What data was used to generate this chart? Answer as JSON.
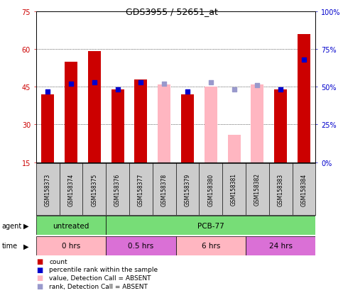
{
  "title": "GDS3955 / 52651_at",
  "samples": [
    "GSM158373",
    "GSM158374",
    "GSM158375",
    "GSM158376",
    "GSM158377",
    "GSM158378",
    "GSM158379",
    "GSM158380",
    "GSM158381",
    "GSM158382",
    "GSM158383",
    "GSM158384"
  ],
  "count_present": [
    42,
    55,
    59,
    44,
    48,
    null,
    42,
    null,
    null,
    null,
    44,
    66
  ],
  "count_absent": [
    null,
    null,
    null,
    null,
    null,
    46,
    null,
    45,
    26,
    46,
    null,
    null
  ],
  "rank_present": [
    47,
    52,
    53,
    48,
    53,
    null,
    47,
    null,
    null,
    null,
    48,
    68
  ],
  "rank_absent": [
    null,
    null,
    null,
    null,
    null,
    52,
    null,
    53,
    48,
    51,
    null,
    null
  ],
  "detection_absent": [
    false,
    false,
    false,
    false,
    false,
    true,
    false,
    true,
    true,
    true,
    false,
    false
  ],
  "ylim_left": [
    15,
    75
  ],
  "ylim_right": [
    0,
    100
  ],
  "yticks_left": [
    15,
    30,
    45,
    60,
    75
  ],
  "yticks_right": [
    0,
    25,
    50,
    75,
    100
  ],
  "right_ytick_labels": [
    "0%",
    "25%",
    "50%",
    "75%",
    "100%"
  ],
  "agent_groups": [
    {
      "label": "untreated",
      "start": 0,
      "end": 3,
      "color": "#77dd77"
    },
    {
      "label": "PCB-77",
      "start": 3,
      "end": 12,
      "color": "#77dd77"
    }
  ],
  "time_groups": [
    {
      "label": "0 hrs",
      "start": 0,
      "end": 3,
      "color": "#ffb6c1"
    },
    {
      "label": "0.5 hrs",
      "start": 3,
      "end": 6,
      "color": "#da70d6"
    },
    {
      "label": "6 hrs",
      "start": 6,
      "end": 9,
      "color": "#ffb6c1"
    },
    {
      "label": "24 hrs",
      "start": 9,
      "end": 12,
      "color": "#da70d6"
    }
  ],
  "color_count_present": "#cc0000",
  "color_count_absent": "#ffb6c1",
  "color_rank_present": "#0000cc",
  "color_rank_absent": "#9999cc",
  "bar_width": 0.55,
  "dot_size": 18,
  "background_color": "#ffffff",
  "left_label_color": "#cc0000",
  "right_label_color": "#0000cc",
  "gsm_bg": "#cccccc",
  "legend_items": [
    {
      "color": "#cc0000",
      "label": "count"
    },
    {
      "color": "#0000cc",
      "label": "percentile rank within the sample"
    },
    {
      "color": "#ffb6c1",
      "label": "value, Detection Call = ABSENT"
    },
    {
      "color": "#9999cc",
      "label": "rank, Detection Call = ABSENT"
    }
  ]
}
